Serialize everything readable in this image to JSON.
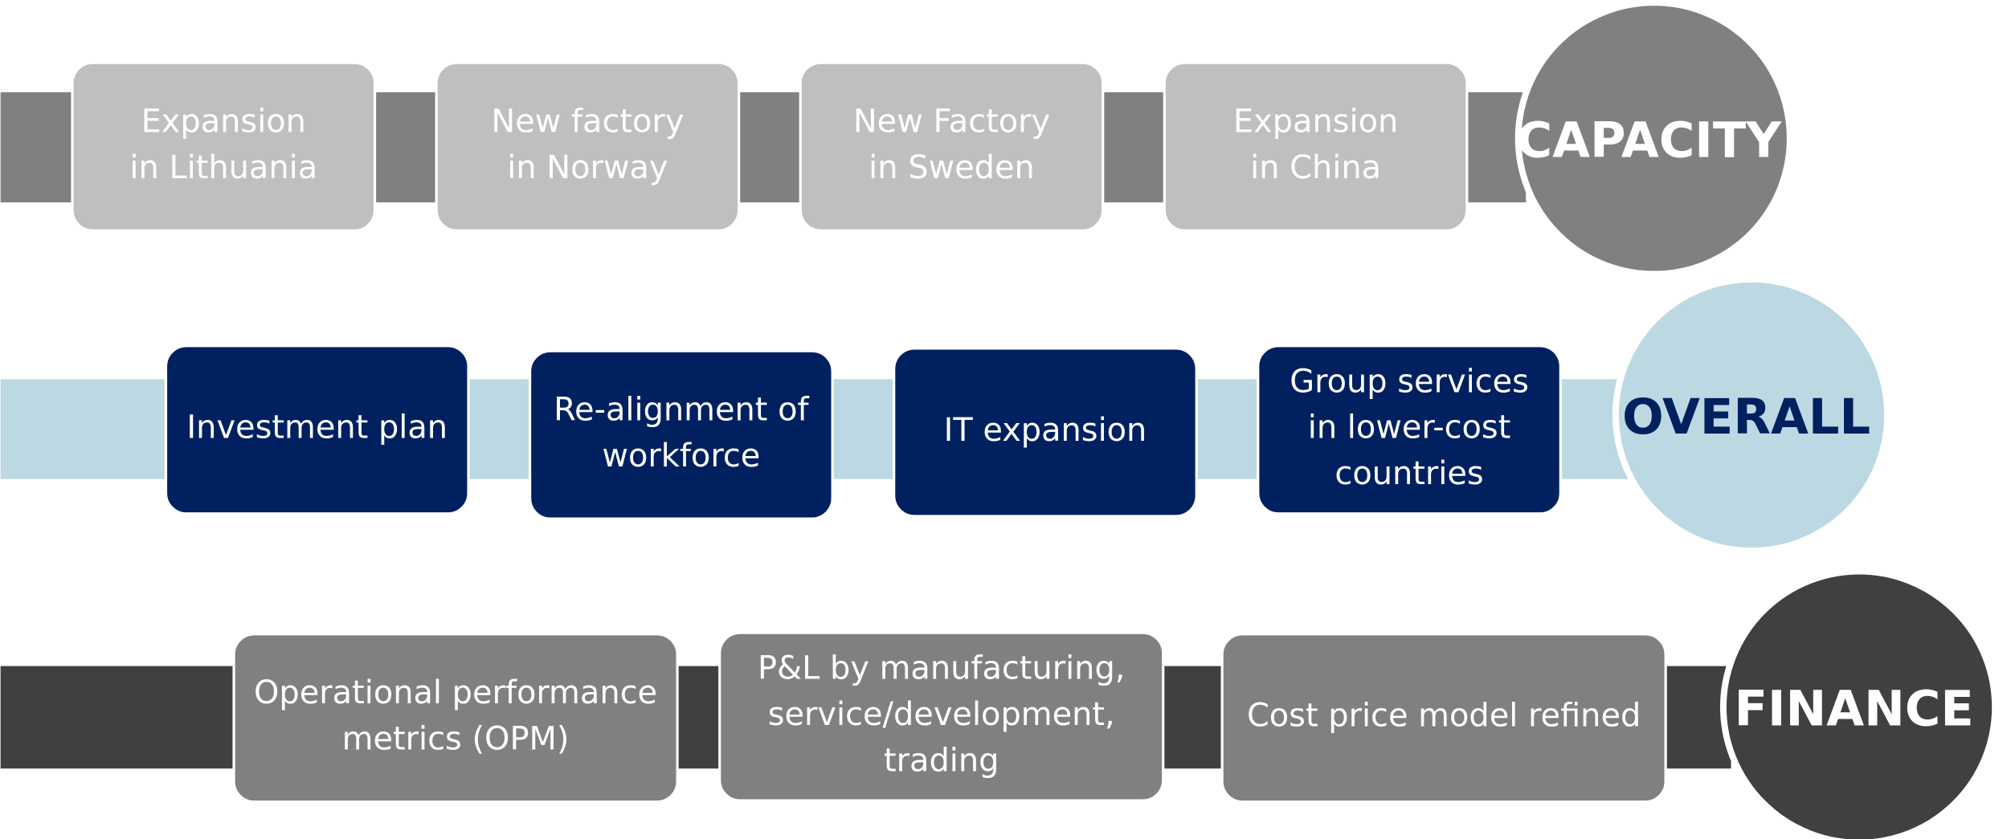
{
  "rows": [
    {
      "label": "CAPACITY",
      "items": [
        [
          "Expansion",
          "in Lithuania"
        ],
        [
          "New factory",
          "in Norway"
        ],
        [
          "New Factory",
          "in Sweden"
        ],
        [
          "Expansion",
          "in China"
        ]
      ]
    },
    {
      "label": "OVERALL",
      "items": [
        [
          "Investment plan"
        ],
        [
          "Re-alignment of",
          "workforce"
        ],
        [
          "IT expansion"
        ],
        [
          "Group services",
          "in lower-cost",
          "countries"
        ]
      ]
    },
    {
      "label": "FINANCE",
      "items": [
        [
          "Operational performance",
          "metrics (OPM)"
        ],
        [
          "P&L by manufacturing,",
          "service/development,",
          "trading"
        ],
        [
          "Cost price model refined"
        ]
      ]
    }
  ]
}
